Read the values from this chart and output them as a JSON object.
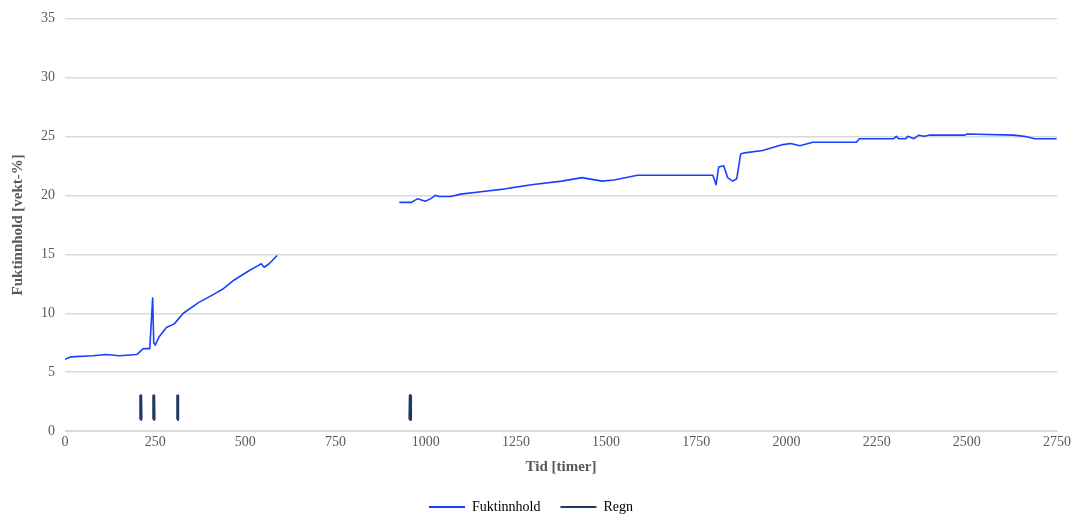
{
  "chart_data": {
    "type": "line",
    "xlabel": "Tid [timer]",
    "ylabel": "Fuktinnhold [vekt-%]",
    "xlim": [
      0,
      2750
    ],
    "xticks": [
      0,
      250,
      500,
      750,
      1000,
      1250,
      1500,
      1750,
      2000,
      2250,
      2500,
      2750
    ],
    "ylim": [
      0,
      35
    ],
    "yticks": [
      0,
      5,
      10,
      15,
      20,
      25,
      30,
      35
    ],
    "grid": "y",
    "legend": "bottom",
    "marker": "none",
    "line_style": "solid",
    "series": [
      {
        "name": "Fuktinnhold",
        "color": "#1a40ff",
        "x": [
          0,
          15,
          77,
          114,
          151,
          199,
          217,
          235,
          243,
          246,
          250,
          261,
          281,
          303,
          328,
          370,
          412,
          440,
          468,
          510,
          533,
          544,
          552,
          566,
          588,
          600,
          927,
          960,
          977,
          999,
          1013,
          1027,
          1036,
          1069,
          1097,
          1153,
          1209,
          1293,
          1377,
          1433,
          1489,
          1522,
          1587,
          1796,
          1805,
          1812,
          1826,
          1837,
          1851,
          1862,
          1873,
          1884,
          1934,
          1990,
          2012,
          2037,
          2073,
          2194,
          2202,
          2297,
          2305,
          2311,
          2331,
          2336,
          2353,
          2367,
          2381,
          2395,
          2493,
          2501,
          2630,
          2660,
          2688,
          2749
        ],
        "values": [
          6.1,
          6.3,
          6.4,
          6.5,
          6.4,
          6.5,
          7.0,
          7.0,
          11.3,
          7.5,
          7.3,
          8.0,
          8.8,
          9.1,
          10.0,
          10.9,
          11.6,
          12.1,
          12.8,
          13.6,
          14.0,
          14.2,
          13.9,
          14.2,
          14.9,
          null,
          19.4,
          19.4,
          19.7,
          19.5,
          19.7,
          20.0,
          19.9,
          19.9,
          20.1,
          20.3,
          20.5,
          20.9,
          21.2,
          21.5,
          21.2,
          21.3,
          21.7,
          21.7,
          20.9,
          22.4,
          22.5,
          21.5,
          21.2,
          21.4,
          23.5,
          23.6,
          23.8,
          24.3,
          24.4,
          24.2,
          24.5,
          24.5,
          24.8,
          24.8,
          25.0,
          24.8,
          24.8,
          25.0,
          24.8,
          25.1,
          25.0,
          25.1,
          25.1,
          25.2,
          25.1,
          25.0,
          24.8,
          24.8
        ]
      },
      {
        "name": "Regn",
        "color": "#1f3864",
        "x": [
          209,
          210,
          211,
          212,
          245,
          246,
          247,
          248,
          311,
          312,
          313,
          314,
          956,
          957,
          958
        ],
        "values": [
          1,
          3,
          1,
          null,
          1,
          3,
          1,
          null,
          1,
          3,
          1,
          null,
          1,
          3,
          1
        ]
      }
    ]
  }
}
